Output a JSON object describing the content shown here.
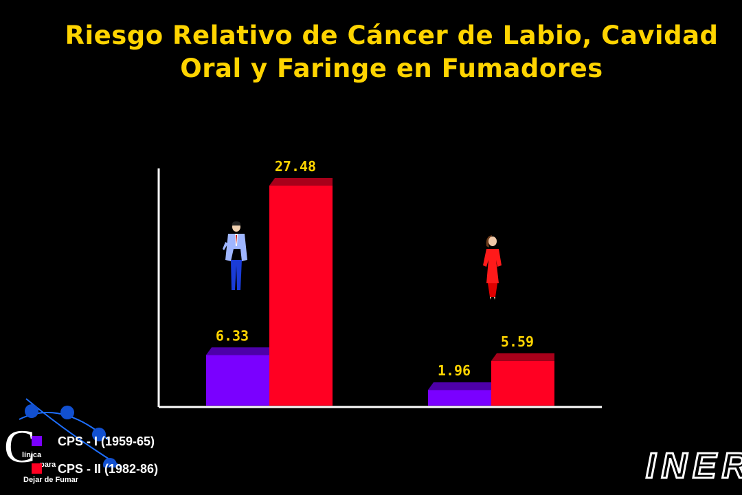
{
  "chart_data": {
    "type": "bar",
    "title": "Riesgo Relativo de Cáncer de Labio, Cavidad Oral y Faringe en Fumadores",
    "categories": [
      "",
      ""
    ],
    "series": [
      {
        "name": "CPS - I  (1959-65)",
        "values": [
          6.33,
          1.96
        ],
        "color": "#7a00ff"
      },
      {
        "name": "CPS - II (1982-86)",
        "values": [
          27.48,
          5.59
        ],
        "color": "#ff0022"
      }
    ],
    "value_labels": [
      [
        "6.33",
        "1.96"
      ],
      [
        "27.48",
        "5.59"
      ]
    ],
    "ylim": [
      0,
      30
    ],
    "grid": false,
    "legend_position": "bottom-left",
    "category_icons": [
      "man-figure-icon",
      "woman-figure-icon"
    ]
  },
  "logo": {
    "letter": "C",
    "line1": "línica",
    "line2": "para",
    "line3": "Dejar de Fumar",
    "brand": "INER"
  },
  "colors": {
    "title": "#ffd400",
    "label": "#ffd400",
    "axis": "#ffffff",
    "background": "#000000"
  }
}
